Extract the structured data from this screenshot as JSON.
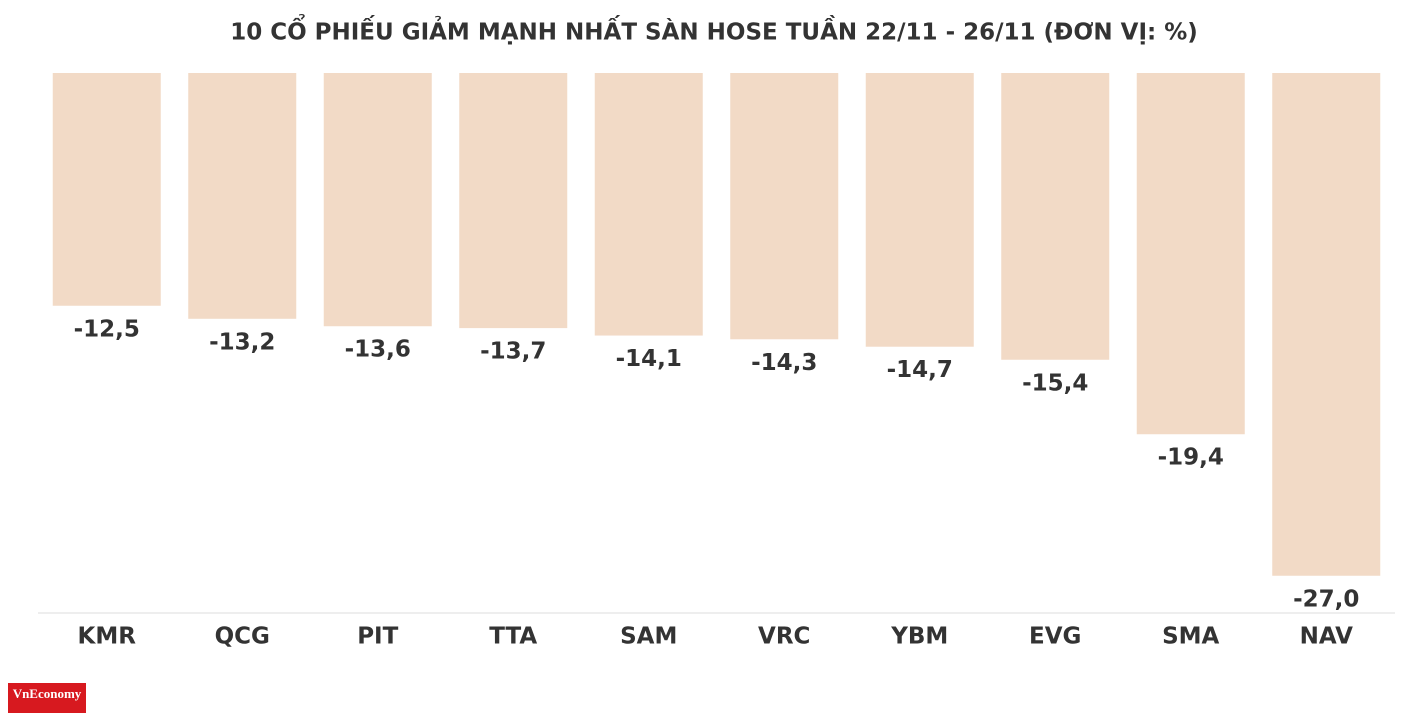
{
  "chart_data": {
    "type": "bar",
    "title": "10 CỔ PHIẾU GIẢM MẠNH NHẤT SÀN HOSE TUẦN 22/11 - 26/11 (ĐƠN VỊ: %)",
    "categories": [
      "KMR",
      "QCG",
      "PIT",
      "TTA",
      "SAM",
      "VRC",
      "YBM",
      "EVG",
      "SMA",
      "NAV"
    ],
    "values": [
      -12.5,
      -13.2,
      -13.6,
      -13.7,
      -14.1,
      -14.3,
      -14.7,
      -15.4,
      -19.4,
      -27.0
    ],
    "value_labels": [
      "-12,5",
      "-13,2",
      "-13,6",
      "-13,7",
      "-14,1",
      "-14,3",
      "-14,7",
      "-15,4",
      "-19,4",
      "-27,0"
    ],
    "color": "#f2dac6",
    "ylim": [
      -29,
      0
    ],
    "logo": "VnEconomy"
  }
}
